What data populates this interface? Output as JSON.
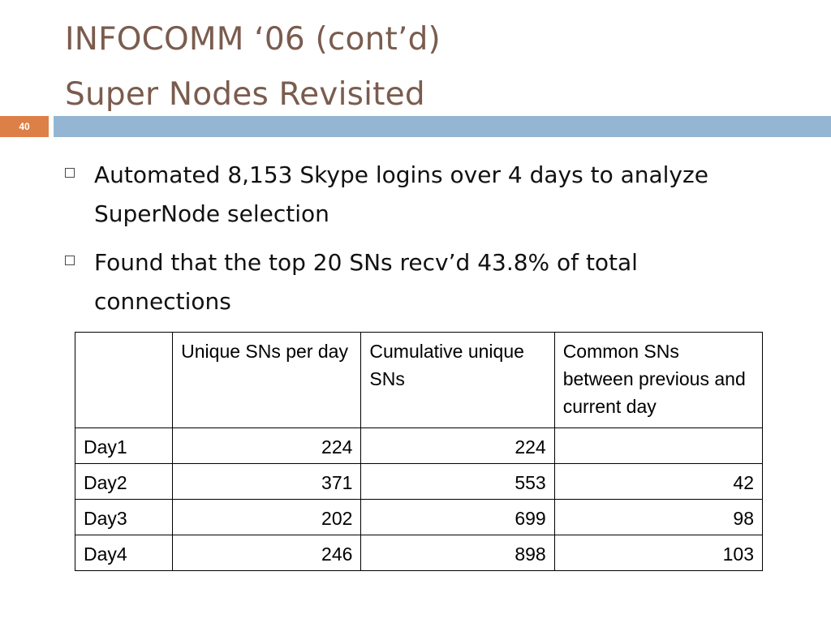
{
  "title": {
    "line1": "INFOCOMM ‘06 (cont’d)",
    "line2": "Super Nodes Revisited"
  },
  "slide_number": "40",
  "colors": {
    "title": "#7a5c4e",
    "number_box": "#dd8047",
    "header_bar": "#94b6d2"
  },
  "bullets": [
    {
      "icon": "hollow-square-bullet-icon",
      "text": "Automated 8,153 Skype logins over 4 days to analyze SuperNode selection"
    },
    {
      "icon": "hollow-square-bullet-icon",
      "text": "Found that the top 20 SNs recv’d 43.8% of total connections"
    }
  ],
  "table": {
    "headers": [
      "",
      "Unique SNs per day",
      "Cumulative unique SNs",
      "Common SNs between previous and current day"
    ],
    "rows": [
      [
        "Day1",
        "224",
        "224",
        ""
      ],
      [
        "Day2",
        "371",
        "553",
        "42"
      ],
      [
        "Day3",
        "202",
        "699",
        "98"
      ],
      [
        "Day4",
        "246",
        "898",
        "103"
      ]
    ]
  }
}
